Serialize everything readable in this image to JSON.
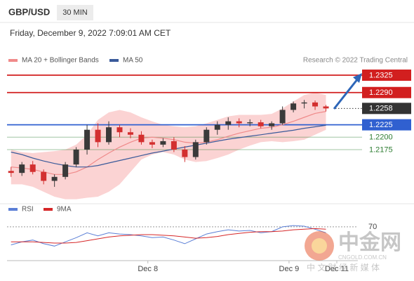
{
  "header": {
    "symbol": "GBP/USD",
    "timeframe": "30 MIN",
    "datetime": "Friday, December 9, 2022 7:09:01 AM CET"
  },
  "watermark": {
    "brand": "中金网",
    "domain": "CNGOLD.COM.CN",
    "tagline": "中 文 财 经 新 媒 体"
  },
  "chart_data": [
    {
      "type": "candlestick",
      "source": "Research © 2022 Trading Central",
      "open": [
        1.2132,
        1.2128,
        1.2145,
        1.213,
        1.2112,
        1.212,
        1.2145,
        1.2175,
        1.2215,
        1.219,
        1.222,
        1.221,
        1.2205,
        1.219,
        1.2185,
        1.2192,
        1.2175,
        1.216,
        1.219,
        1.2215,
        1.2225,
        1.2232,
        1.2228,
        1.223,
        1.2222,
        1.2228,
        1.2255,
        1.2268,
        1.227,
        1.2262
      ],
      "high": [
        1.214,
        1.215,
        1.2152,
        1.2135,
        1.2125,
        1.215,
        1.218,
        1.2225,
        1.2228,
        1.2232,
        1.2225,
        1.2218,
        1.2212,
        1.2195,
        1.2198,
        1.22,
        1.2182,
        1.2195,
        1.222,
        1.2232,
        1.224,
        1.2238,
        1.2236,
        1.2235,
        1.2232,
        1.2262,
        1.2272,
        1.2275,
        1.2274,
        1.2265
      ],
      "low": [
        1.212,
        1.2122,
        1.2125,
        1.2105,
        1.21,
        1.2115,
        1.214,
        1.2165,
        1.218,
        1.2185,
        1.22,
        1.2198,
        1.2185,
        1.2178,
        1.218,
        1.217,
        1.215,
        1.2155,
        1.2185,
        1.2205,
        1.2215,
        1.222,
        1.2222,
        1.2218,
        1.2215,
        1.2225,
        1.225,
        1.2258,
        1.2255,
        1.2252
      ],
      "close": [
        1.2128,
        1.2145,
        1.213,
        1.2112,
        1.212,
        1.2145,
        1.2175,
        1.2215,
        1.219,
        1.222,
        1.221,
        1.2205,
        1.219,
        1.2185,
        1.2192,
        1.2175,
        1.216,
        1.219,
        1.2215,
        1.2225,
        1.2232,
        1.2228,
        1.223,
        1.2222,
        1.2228,
        1.2255,
        1.2268,
        1.227,
        1.2262,
        1.2258
      ],
      "up_color": "#3a3a3a",
      "down_color": "#d32f2f",
      "xlim": [
        -0.5,
        30
      ],
      "ylim": [
        1.2073,
        1.2342
      ],
      "xticks": [
        {
          "value": 12.6,
          "label": "Dec 8"
        },
        {
          "value": 25.6,
          "label": "Dec 9"
        },
        {
          "value": 30,
          "label": "Dec 11"
        }
      ],
      "series": [
        {
          "name": "MA 20 + Bollinger Bands",
          "color": "#ef8a8a",
          "band_color": "#fbd3d3",
          "values": [
            1.214,
            1.2138,
            1.2135,
            1.213,
            1.2125,
            1.2125,
            1.213,
            1.214,
            1.2155,
            1.2168,
            1.218,
            1.219,
            1.2198,
            1.22,
            1.2198,
            1.2195,
            1.219,
            1.2188,
            1.219,
            1.2195,
            1.2202,
            1.2208,
            1.2213,
            1.2218,
            1.222,
            1.2225,
            1.2232,
            1.224,
            1.2248,
            1.2252
          ],
          "upper": [
            1.2175,
            1.217,
            1.2168,
            1.217,
            1.2172,
            1.2175,
            1.2185,
            1.2205,
            1.2235,
            1.225,
            1.2255,
            1.225,
            1.224,
            1.2232,
            1.2225,
            1.2222,
            1.222,
            1.2222,
            1.2228,
            1.2235,
            1.2242,
            1.2245,
            1.2245,
            1.2245,
            1.2247,
            1.2258,
            1.2272,
            1.2285,
            1.229,
            1.2285
          ],
          "lower": [
            1.2105,
            1.2105,
            1.21,
            1.209,
            1.208,
            1.2075,
            1.2075,
            1.2078,
            1.208,
            1.209,
            1.2105,
            1.213,
            1.2155,
            1.2165,
            1.217,
            1.2165,
            1.2155,
            1.215,
            1.2152,
            1.2158,
            1.2165,
            1.2175,
            1.2183,
            1.219,
            1.2192,
            1.219,
            1.2192,
            1.2195,
            1.2205,
            1.2215
          ]
        },
        {
          "name": "MA 50",
          "color": "#3a5a9a",
          "values": [
            1.217,
            1.2165,
            1.2158,
            1.2152,
            1.2147,
            1.2143,
            1.214,
            1.214,
            1.2143,
            1.2148,
            1.2153,
            1.2158,
            1.2163,
            1.2168,
            1.2172,
            1.2176,
            1.218,
            1.2184,
            1.2188,
            1.2192,
            1.2196,
            1.2199,
            1.2202,
            1.2205,
            1.2208,
            1.2211,
            1.2214,
            1.2218,
            1.2221,
            1.2224
          ]
        }
      ],
      "levels": [
        {
          "value": 1.2325,
          "color": "#d21f1f",
          "line": "solid",
          "label_box": true
        },
        {
          "value": {
            "value": 1.229,
            "label": "1.2290"
          },
          "color": "#d21f1f",
          "line": "solid",
          "label_box": true
        },
        {
          "value": 1.2258,
          "color": "#333333",
          "line": "dotted",
          "label_box": true
        },
        {
          "value": 1.2225,
          "color": "#3060d0",
          "line": "solid",
          "label_box": true
        },
        {
          "value": {
            "value": 1.22,
            "label": "1.2200"
          },
          "color": "#2e7d32",
          "line": "faint",
          "label_box": false
        },
        {
          "value": 1.2175,
          "color": "#2e7d32",
          "line": "faint",
          "label_box": false
        }
      ]
    },
    {
      "type": "line",
      "ylim": [
        15,
        85
      ],
      "yticks": [
        70
      ],
      "xlim": [
        -0.5,
        30
      ],
      "series": [
        {
          "name": "RSI",
          "color": "#5b7fd6",
          "values": [
            40,
            45,
            48,
            42,
            38,
            45,
            52,
            60,
            55,
            60,
            58,
            57,
            55,
            52,
            53,
            48,
            42,
            50,
            58,
            62,
            65,
            63,
            64,
            60,
            62,
            70,
            72,
            71,
            66,
            60
          ]
        },
        {
          "name": "9MA",
          "color": "#d62728",
          "values": [
            45,
            45,
            45,
            44,
            43,
            43,
            44,
            47,
            50,
            53,
            55,
            56,
            57,
            57,
            56,
            55,
            53,
            51,
            52,
            54,
            57,
            59,
            61,
            62,
            62,
            63,
            65,
            66,
            67,
            66
          ]
        }
      ]
    }
  ]
}
